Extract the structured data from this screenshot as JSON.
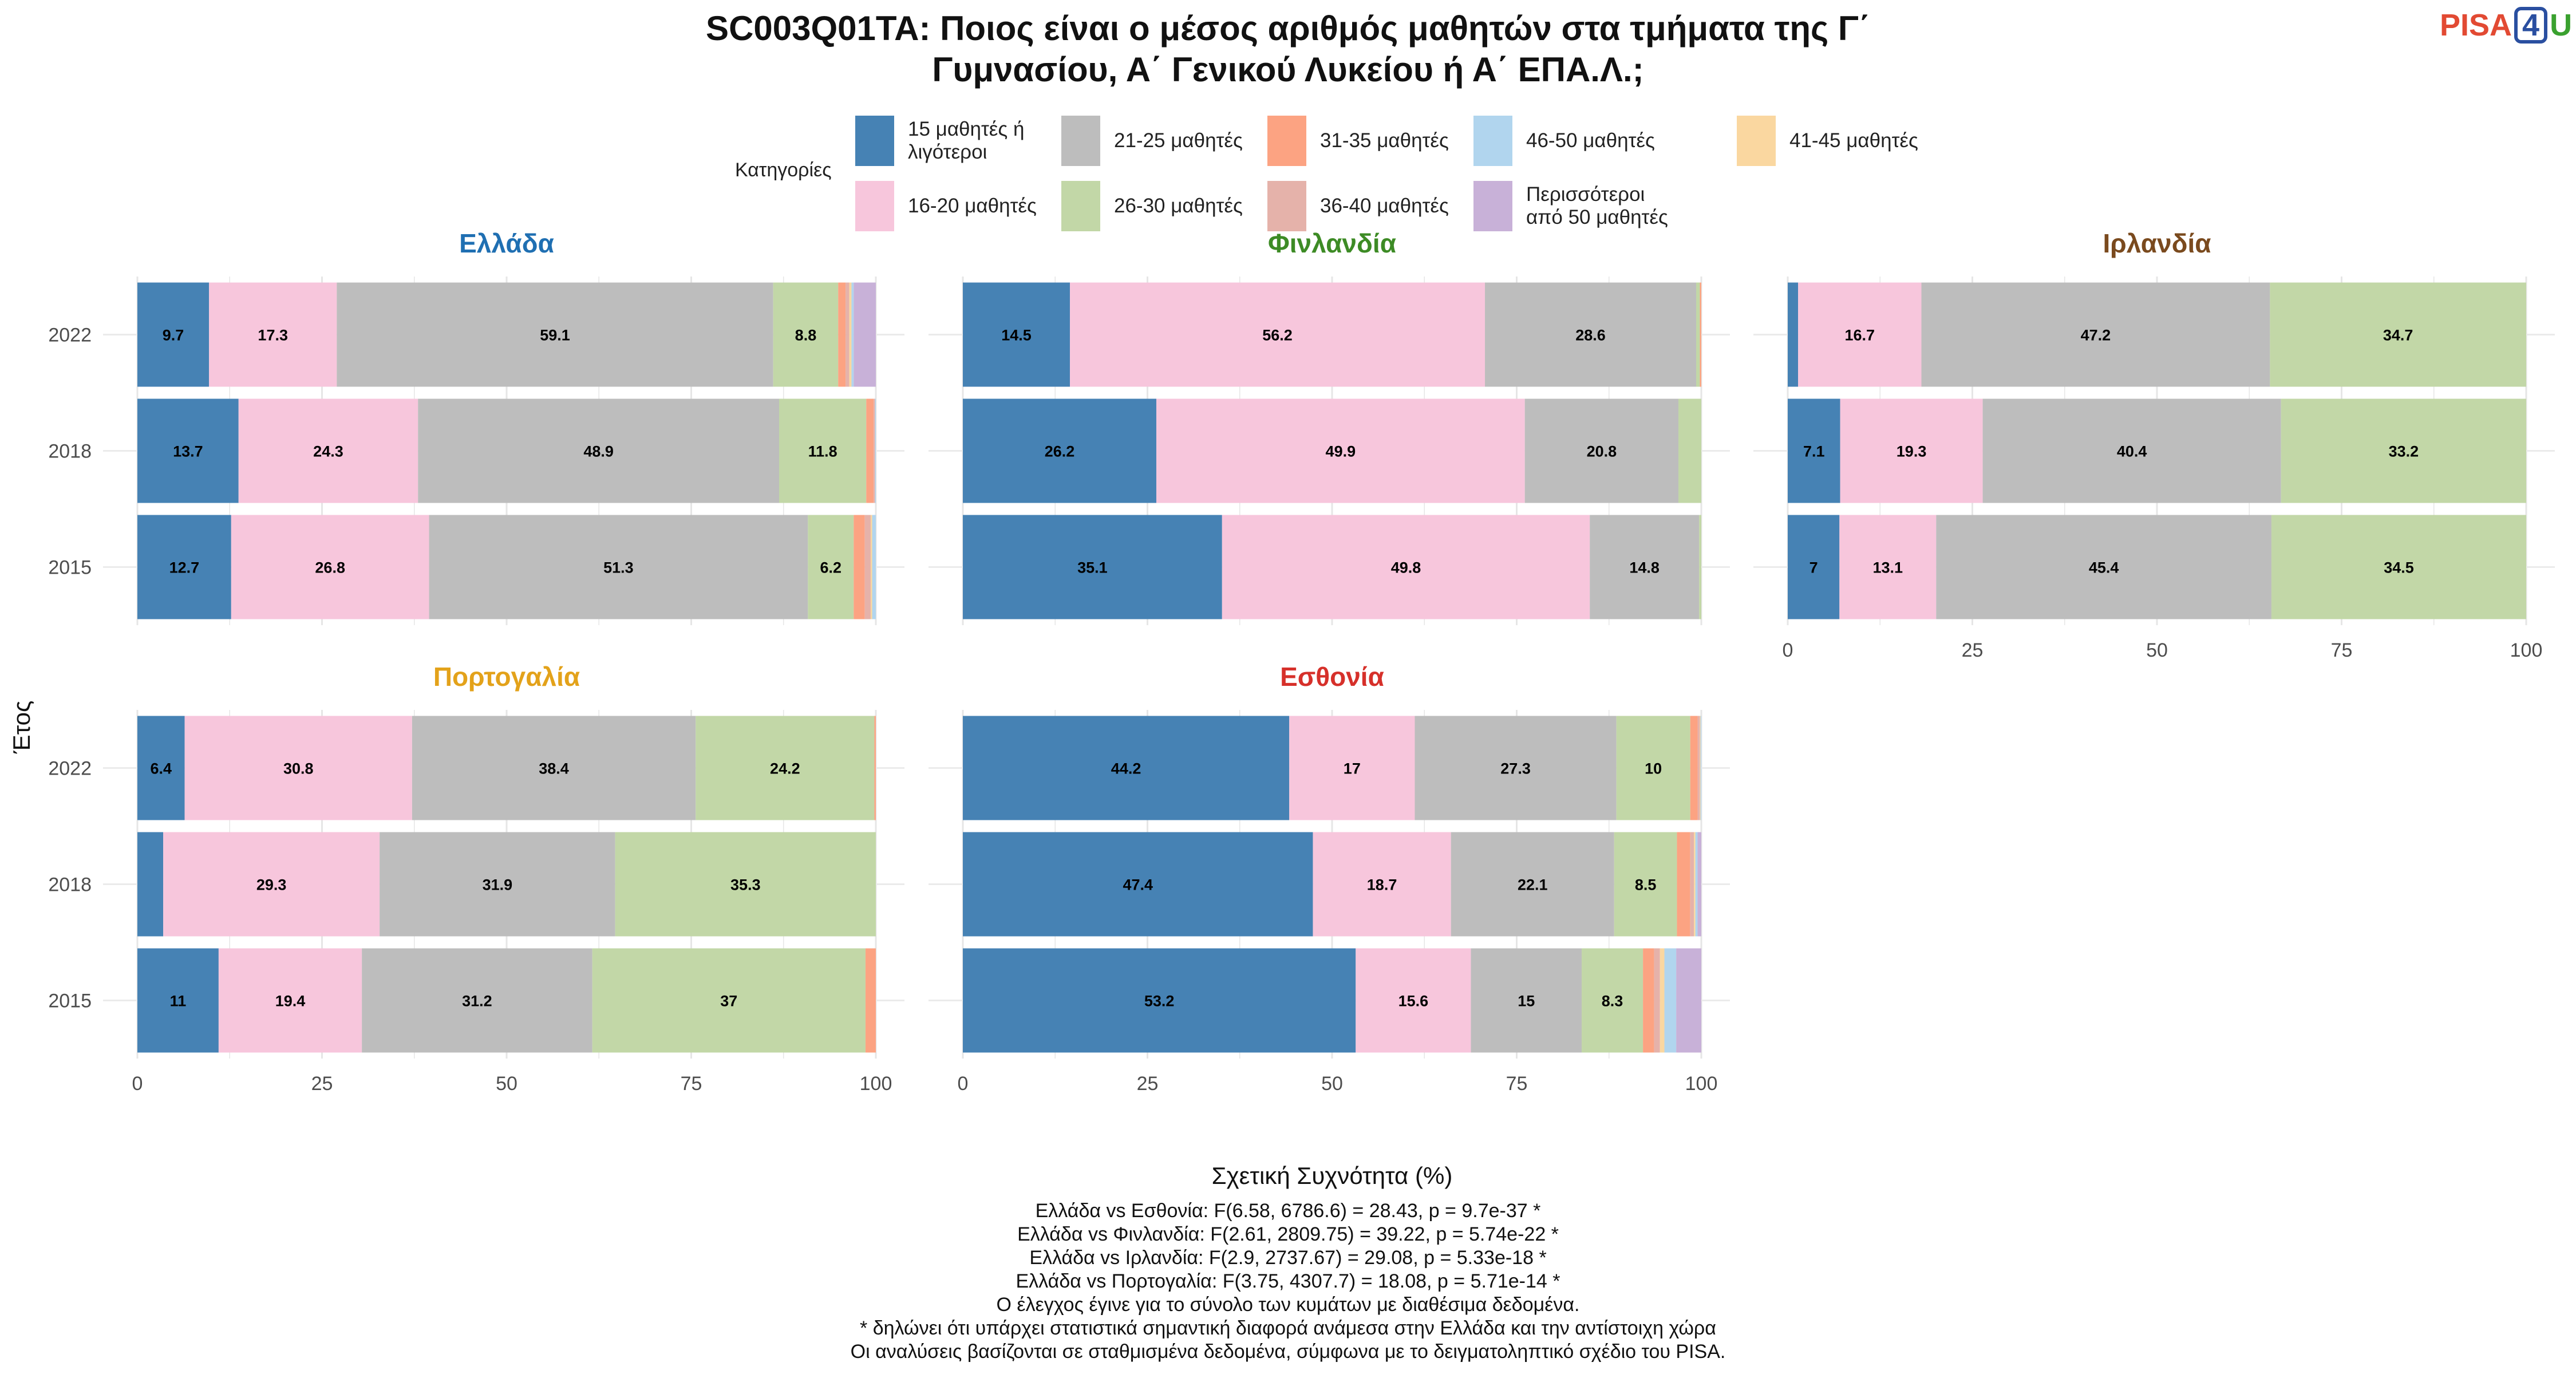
{
  "title": "SC003Q01TA: Ποιος είναι ο μέσος αριθμός μαθητών στα τμήματα της Γ΄ Γυμνασίου, Α΄ Γενικού Λυκείου ή Α΄ ΕΠΑ.Λ.;",
  "title_lines": [
    "SC003Q01TA: Ποιος είναι ο μέσος αριθμός μαθητών στα τμήματα της Γ΄",
    "Γυμνασίου, Α΄ Γενικού Λυκείου ή Α΄ ΕΠΑ.Λ.;"
  ],
  "logo": {
    "part1": "PISA",
    "part2": "4",
    "part3": "U"
  },
  "legend_title": "Κατηγορίες",
  "categories": [
    {
      "label": "15 μαθητές ή λιγότεροι",
      "color": "#4682b4"
    },
    {
      "label": "16-20 μαθητές",
      "color": "#f7c6dc"
    },
    {
      "label": "21-25 μαθητές",
      "color": "#bdbdbd"
    },
    {
      "label": "26-30 μαθητές",
      "color": "#c2d7a7"
    },
    {
      "label": "31-35 μαθητές",
      "color": "#fca382"
    },
    {
      "label": "36-40 μαθητές",
      "color": "#e5b2aa"
    },
    {
      "label": "46-50 μαθητές",
      "color": "#b1d5ee"
    },
    {
      "label": "Περισσότεροι από 50 μαθητές",
      "color": "#c8b1d8"
    },
    {
      "label": "41-45 μαθητές",
      "color": "#fad7a0"
    }
  ],
  "chart_data": {
    "type": "bar",
    "orientation": "horizontal",
    "stacked": true,
    "xlabel": "Σχετική Συχνότητα (%)",
    "ylabel": "Έτος",
    "xlim": [
      0,
      100
    ],
    "xticks": [
      "0",
      "25",
      "50",
      "75",
      "100"
    ],
    "years": [
      "2022",
      "2018",
      "2015"
    ],
    "stack_order": [
      "15 μαθητές ή λιγότεροι",
      "16-20 μαθητές",
      "21-25 μαθητές",
      "26-30 μαθητές",
      "31-35 μαθητές",
      "36-40 μαθητές",
      "41-45 μαθητές",
      "46-50 μαθητές",
      "Περισσότεροι από 50 μαθητές"
    ],
    "panels": [
      {
        "name": "Ελλάδα",
        "title_color": "#1f6fb2",
        "bars": [
          {
            "year": "2022",
            "values": [
              9.7,
              17.3,
              59.1,
              8.8,
              1.0,
              0.5,
              0.3,
              0.3,
              3.0
            ]
          },
          {
            "year": "2018",
            "values": [
              13.7,
              24.3,
              48.9,
              11.8,
              1.0,
              0.2,
              0.0,
              0.1,
              0.0
            ]
          },
          {
            "year": "2015",
            "values": [
              12.7,
              26.8,
              51.3,
              6.2,
              1.5,
              0.8,
              0.2,
              0.5,
              0.0
            ]
          }
        ]
      },
      {
        "name": "Φινλανδία",
        "title_color": "#3d8b25",
        "bars": [
          {
            "year": "2022",
            "values": [
              14.5,
              56.2,
              28.6,
              0.5,
              0.2,
              0.0,
              0.0,
              0.0,
              0.0
            ]
          },
          {
            "year": "2018",
            "values": [
              26.2,
              49.9,
              20.8,
              3.1,
              0.0,
              0.0,
              0.0,
              0.0,
              0.0
            ]
          },
          {
            "year": "2015",
            "values": [
              35.1,
              49.8,
              14.8,
              0.3,
              0.0,
              0.0,
              0.0,
              0.0,
              0.0
            ]
          }
        ]
      },
      {
        "name": "Ιρλανδία",
        "title_color": "#7a4a1e",
        "bars": [
          {
            "year": "2022",
            "values": [
              1.4,
              16.7,
              47.2,
              34.7,
              0.0,
              0.0,
              0.0,
              0.0,
              0.0
            ]
          },
          {
            "year": "2018",
            "values": [
              7.1,
              19.3,
              40.4,
              33.2,
              0.0,
              0.0,
              0.0,
              0.0,
              0.0
            ]
          },
          {
            "year": "2015",
            "values": [
              7,
              13.1,
              45.4,
              34.5,
              0.0,
              0.0,
              0.0,
              0.0,
              0.0
            ]
          }
        ]
      },
      {
        "name": "Πορτογαλία",
        "title_color": "#e3a21a",
        "bars": [
          {
            "year": "2022",
            "values": [
              6.4,
              30.8,
              38.4,
              24.2,
              0.2,
              0.0,
              0.0,
              0.0,
              0.0
            ]
          },
          {
            "year": "2018",
            "values": [
              3.5,
              29.3,
              31.9,
              35.3,
              0.0,
              0.0,
              0.0,
              0.0,
              0.0
            ]
          },
          {
            "year": "2015",
            "values": [
              11,
              19.4,
              31.2,
              37,
              1.4,
              0.0,
              0.0,
              0.0,
              0.0
            ]
          }
        ]
      },
      {
        "name": "Εσθονία",
        "title_color": "#d6302a",
        "bars": [
          {
            "year": "2022",
            "values": [
              44.2,
              17,
              27.3,
              10,
              1.0,
              0.3,
              0.1,
              0.1,
              0.0
            ]
          },
          {
            "year": "2018",
            "values": [
              47.4,
              18.7,
              22.1,
              8.5,
              1.8,
              0.5,
              0.2,
              0.3,
              0.5
            ]
          },
          {
            "year": "2015",
            "values": [
              53.2,
              15.6,
              15,
              8.3,
              1.5,
              0.8,
              0.6,
              1.6,
              3.4
            ]
          }
        ]
      }
    ]
  },
  "notes": [
    "Ελλάδα vs Εσθονία: F(6.58, 6786.6) = 28.43, p = 9.7e-37 *",
    "Ελλάδα vs Φινλανδία: F(2.61, 2809.75) = 39.22, p = 5.74e-22 *",
    "Ελλάδα vs Ιρλανδία: F(2.9, 2737.67) = 29.08, p = 5.33e-18 *",
    "Ελλάδα vs Πορτογαλία: F(3.75, 4307.7) = 18.08, p = 5.71e-14 *",
    "Ο έλεγχος έγινε για το σύνολο των κυμάτων με διαθέσιμα δεδομένα.",
    "* δηλώνει ότι υπάρχει στατιστικά σημαντική διαφορά ανάμεσα στην Ελλάδα και την αντίστοιχη χώρα",
    "Οι αναλύσεις βασίζονται σε σταθμισμένα δεδομένα, σύμφωνα με το δειγματοληπτικό σχέδιο του PISA."
  ]
}
